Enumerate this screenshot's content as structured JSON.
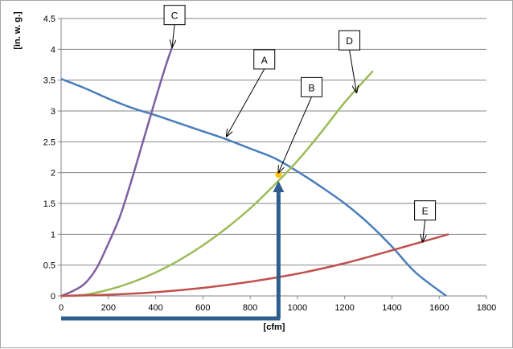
{
  "chart_data": {
    "type": "line",
    "title": "",
    "xlabel": "[cfm]",
    "ylabel": "[in. w. g.]",
    "xlim": [
      0,
      1800
    ],
    "ylim": [
      0,
      4.5
    ],
    "x_ticks": [
      "0",
      "200",
      "400",
      "600",
      "800",
      "1000",
      "1200",
      "1400",
      "1600",
      "1800"
    ],
    "y_ticks": [
      "0",
      "0.5",
      "1",
      "1.5",
      "2",
      "2.5",
      "3",
      "3.5",
      "4",
      "4.5"
    ],
    "grid": "horizontal",
    "legend": "none",
    "series": [
      {
        "name": "A",
        "color": "#4a7ebb",
        "points": [
          [
            0,
            3.52
          ],
          [
            100,
            3.37
          ],
          [
            200,
            3.2
          ],
          [
            300,
            3.05
          ],
          [
            400,
            2.93
          ],
          [
            500,
            2.8
          ],
          [
            600,
            2.67
          ],
          [
            700,
            2.54
          ],
          [
            800,
            2.39
          ],
          [
            900,
            2.24
          ],
          [
            1000,
            2.02
          ],
          [
            1100,
            1.77
          ],
          [
            1200,
            1.5
          ],
          [
            1300,
            1.18
          ],
          [
            1400,
            0.8
          ],
          [
            1500,
            0.38
          ],
          [
            1630,
            0.0
          ]
        ]
      },
      {
        "name": "C",
        "color": "#7e5fa1",
        "points": [
          [
            0,
            0.0
          ],
          [
            50,
            0.08
          ],
          [
            100,
            0.2
          ],
          [
            150,
            0.45
          ],
          [
            200,
            0.85
          ],
          [
            250,
            1.3
          ],
          [
            300,
            1.9
          ],
          [
            350,
            2.55
          ],
          [
            400,
            3.2
          ],
          [
            440,
            3.7
          ],
          [
            470,
            4.04
          ]
        ]
      },
      {
        "name": "D",
        "color": "#9bbb59",
        "points": [
          [
            0,
            0.0
          ],
          [
            100,
            0.02
          ],
          [
            200,
            0.1
          ],
          [
            300,
            0.22
          ],
          [
            400,
            0.38
          ],
          [
            500,
            0.58
          ],
          [
            600,
            0.82
          ],
          [
            700,
            1.1
          ],
          [
            800,
            1.42
          ],
          [
            900,
            1.79
          ],
          [
            1000,
            2.19
          ],
          [
            1100,
            2.65
          ],
          [
            1200,
            3.14
          ],
          [
            1320,
            3.65
          ]
        ]
      },
      {
        "name": "E",
        "color": "#c0504d",
        "points": [
          [
            0,
            0.0
          ],
          [
            200,
            0.02
          ],
          [
            400,
            0.06
          ],
          [
            600,
            0.13
          ],
          [
            800,
            0.23
          ],
          [
            1000,
            0.36
          ],
          [
            1200,
            0.53
          ],
          [
            1400,
            0.74
          ],
          [
            1640,
            1.0
          ]
        ]
      }
    ],
    "operating_point": {
      "x": 920,
      "y": 1.97,
      "color": "#ffc000"
    },
    "callouts": [
      {
        "label": "C",
        "tail": [
          480,
          4.4
        ],
        "tip": [
          470,
          4.04
        ]
      },
      {
        "label": "A",
        "tail": [
          860,
          3.68
        ],
        "tip": [
          700,
          2.59
        ]
      },
      {
        "label": "D",
        "tail": [
          1220,
          3.99
        ],
        "tip": [
          1250,
          3.3
        ]
      },
      {
        "label": "B",
        "tail": [
          1060,
          3.23
        ],
        "tip": [
          920,
          2.0
        ]
      },
      {
        "label": "E",
        "tail": [
          1540,
          1.23
        ],
        "tip": [
          1530,
          0.88
        ]
      }
    ],
    "marker_arrows_color": "#2f5e8e"
  }
}
